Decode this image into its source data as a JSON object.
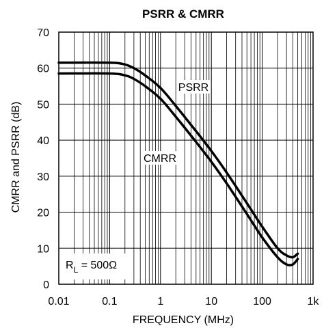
{
  "chart_data": {
    "type": "line",
    "title": "PSRR & CMRR",
    "xlabel": "FREQUENCY (MHz)",
    "ylabel": "CMRR and PSRR (dB)",
    "x_scale": "log",
    "xlim": [
      0.01,
      1000
    ],
    "ylim": [
      0,
      70
    ],
    "x_tick_labels": [
      "0.01",
      "0.1",
      "1",
      "10",
      "100",
      "1k"
    ],
    "y_tick_labels": [
      "0",
      "10",
      "20",
      "30",
      "40",
      "50",
      "60",
      "70"
    ],
    "grid": true,
    "series": [
      {
        "name": "PSRR",
        "x": [
          0.01,
          0.1,
          0.2,
          0.3,
          0.5,
          1,
          2,
          5,
          10,
          20,
          50,
          100,
          200,
          300,
          400,
          500
        ],
        "y": [
          61.5,
          61.5,
          61,
          60,
          58,
          54.5,
          49.5,
          42.5,
          37,
          31,
          22.5,
          16,
          10,
          8,
          7.5,
          8.5
        ]
      },
      {
        "name": "CMRR",
        "x": [
          0.01,
          0.1,
          0.2,
          0.3,
          0.5,
          1,
          2,
          5,
          10,
          20,
          50,
          100,
          200,
          300,
          400,
          500
        ],
        "y": [
          58.5,
          58.5,
          58,
          57,
          55,
          51.5,
          46.5,
          39.5,
          34,
          28,
          19.5,
          13,
          7.5,
          5.5,
          5.5,
          7
        ]
      }
    ],
    "annotations": [
      {
        "text": "PSRR",
        "target": "PSRR"
      },
      {
        "text": "CMRR",
        "target": "CMRR"
      },
      {
        "text_main": "R",
        "text_sub": "L",
        "text_rest": " = 500Ω"
      }
    ]
  }
}
